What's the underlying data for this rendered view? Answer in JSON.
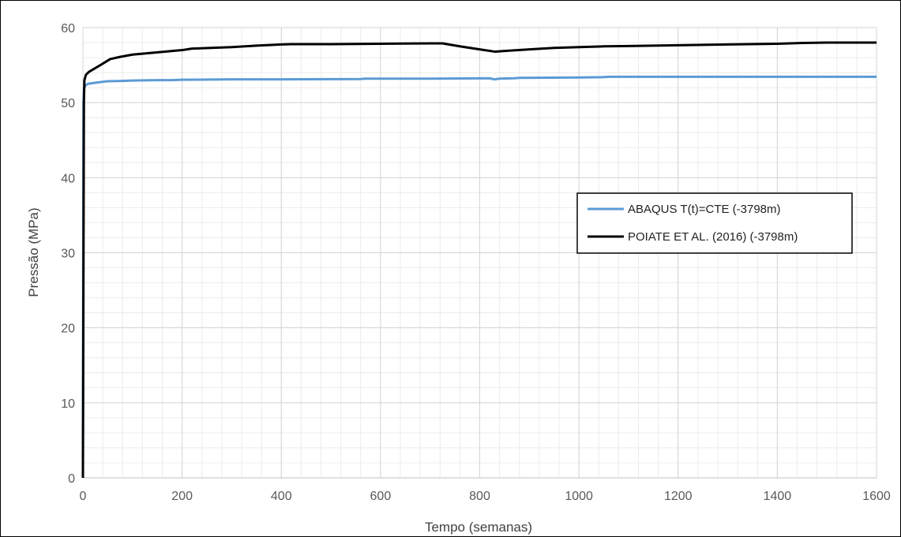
{
  "chart_data": {
    "type": "line",
    "title": "",
    "xlabel": "Tempo (semanas)",
    "ylabel": "Pressão (MPa)",
    "xlim": [
      0,
      1600
    ],
    "ylim": [
      0,
      60
    ],
    "x_ticks": [
      0,
      200,
      400,
      600,
      800,
      1000,
      1200,
      1400,
      1600
    ],
    "y_ticks": [
      0,
      10,
      20,
      30,
      40,
      50,
      60
    ],
    "grid": true,
    "legend_position": "right-center",
    "series": [
      {
        "name": "ABAQUS T(t)=CTE (-3798m)",
        "color": "#5B9BD5",
        "points": [
          [
            0,
            0
          ],
          [
            1,
            50
          ],
          [
            2,
            51.8
          ],
          [
            5,
            52.3
          ],
          [
            10,
            52.5
          ],
          [
            20,
            52.6
          ],
          [
            30,
            52.7
          ],
          [
            50,
            52.85
          ],
          [
            80,
            52.9
          ],
          [
            100,
            52.95
          ],
          [
            150,
            53.0
          ],
          [
            180,
            53.0
          ],
          [
            200,
            53.05
          ],
          [
            300,
            53.1
          ],
          [
            400,
            53.1
          ],
          [
            560,
            53.15
          ],
          [
            570,
            53.2
          ],
          [
            700,
            53.2
          ],
          [
            820,
            53.25
          ],
          [
            830,
            53.1
          ],
          [
            840,
            53.2
          ],
          [
            870,
            53.25
          ],
          [
            880,
            53.3
          ],
          [
            1000,
            53.35
          ],
          [
            1050,
            53.4
          ],
          [
            1060,
            53.45
          ],
          [
            1200,
            53.45
          ],
          [
            1400,
            53.45
          ],
          [
            1600,
            53.45
          ]
        ]
      },
      {
        "name": "POIATE ET AL. (2016) (-3798m)",
        "color": "#000000",
        "points": [
          [
            0,
            0
          ],
          [
            2,
            50
          ],
          [
            3,
            53.0
          ],
          [
            6,
            53.7
          ],
          [
            12,
            54.1
          ],
          [
            25,
            54.6
          ],
          [
            40,
            55.2
          ],
          [
            55,
            55.8
          ],
          [
            75,
            56.1
          ],
          [
            100,
            56.4
          ],
          [
            150,
            56.7
          ],
          [
            200,
            57.0
          ],
          [
            220,
            57.2
          ],
          [
            300,
            57.4
          ],
          [
            350,
            57.6
          ],
          [
            400,
            57.75
          ],
          [
            420,
            57.8
          ],
          [
            500,
            57.8
          ],
          [
            600,
            57.85
          ],
          [
            700,
            57.9
          ],
          [
            725,
            57.9
          ],
          [
            760,
            57.5
          ],
          [
            800,
            57.1
          ],
          [
            830,
            56.8
          ],
          [
            900,
            57.1
          ],
          [
            950,
            57.3
          ],
          [
            1000,
            57.4
          ],
          [
            1050,
            57.5
          ],
          [
            1100,
            57.55
          ],
          [
            1200,
            57.65
          ],
          [
            1300,
            57.75
          ],
          [
            1400,
            57.85
          ],
          [
            1450,
            57.95
          ],
          [
            1500,
            58.0
          ],
          [
            1600,
            58.0
          ]
        ]
      }
    ]
  }
}
